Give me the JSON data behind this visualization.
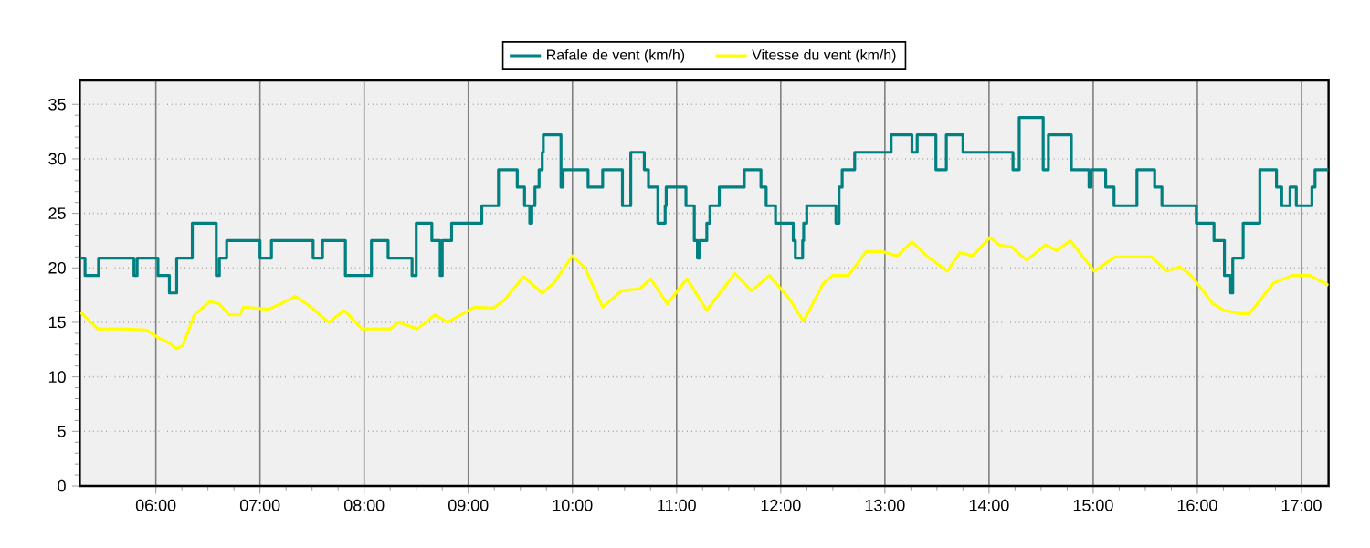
{
  "chart_data": {
    "type": "line",
    "grid": true,
    "legend": "top",
    "xlim": [
      5.27,
      17.26
    ],
    "ylim": [
      0,
      37.2
    ],
    "xticks": [
      {
        "value": 6,
        "label": "06:00"
      },
      {
        "value": 7,
        "label": "07:00"
      },
      {
        "value": 8,
        "label": "08:00"
      },
      {
        "value": 9,
        "label": "09:00"
      },
      {
        "value": 10,
        "label": "10:00"
      },
      {
        "value": 11,
        "label": "11:00"
      },
      {
        "value": 12,
        "label": "12:00"
      },
      {
        "value": 13,
        "label": "13:00"
      },
      {
        "value": 14,
        "label": "14:00"
      },
      {
        "value": 15,
        "label": "15:00"
      },
      {
        "value": 16,
        "label": "16:00"
      },
      {
        "value": 17,
        "label": "17:00"
      }
    ],
    "yticks": [
      0,
      5,
      10,
      15,
      20,
      25,
      30,
      35
    ],
    "series": [
      {
        "name": "Rafale de vent (km/h)",
        "type": "step",
        "color": "#008080",
        "x": [
          5.27,
          5.32,
          5.45,
          5.79,
          5.82,
          5.84,
          6.02,
          6.13,
          6.2,
          6.35,
          6.58,
          6.61,
          6.64,
          6.68,
          7.0,
          7.11,
          7.51,
          7.6,
          7.82,
          8.07,
          8.23,
          8.46,
          8.48,
          8.5,
          8.65,
          8.71,
          8.73,
          8.75,
          8.84,
          9.13,
          9.29,
          9.47,
          9.54,
          9.59,
          9.61,
          9.64,
          9.68,
          9.71,
          9.72,
          9.89,
          9.91,
          9.93,
          10.15,
          10.29,
          10.48,
          10.53,
          10.56,
          10.69,
          10.73,
          10.76,
          10.82,
          10.89,
          10.9,
          11.04,
          11.09,
          11.17,
          11.2,
          11.22,
          11.29,
          11.32,
          11.41,
          11.65,
          11.81,
          11.86,
          11.91,
          11.95,
          12.12,
          12.14,
          12.16,
          12.21,
          12.22,
          12.24,
          12.25,
          12.53,
          12.54,
          12.56,
          12.59,
          12.71,
          13.06,
          13.26,
          13.31,
          13.33,
          13.49,
          13.51,
          13.59,
          13.75,
          14.23,
          14.26,
          14.29,
          14.52,
          14.55,
          14.57,
          14.79,
          14.96,
          14.98,
          15.02,
          15.12,
          15.2,
          15.3,
          15.42,
          15.59,
          15.63,
          15.66,
          15.99,
          16.16,
          16.26,
          16.29,
          16.32,
          16.34,
          16.36,
          16.44,
          16.6,
          16.76,
          16.81,
          16.85,
          16.89,
          16.95,
          17.1,
          17.13,
          17.17,
          17.26
        ],
        "values": [
          20.9,
          19.3,
          20.9,
          19.3,
          20.9,
          20.9,
          19.3,
          17.7,
          20.9,
          24.1,
          19.3,
          20.9,
          20.9,
          22.5,
          20.9,
          22.5,
          20.9,
          22.5,
          19.3,
          22.5,
          20.9,
          19.3,
          19.3,
          24.1,
          22.5,
          22.5,
          19.3,
          22.5,
          24.1,
          25.7,
          29.0,
          27.4,
          25.7,
          24.1,
          25.7,
          27.4,
          29.0,
          30.6,
          32.2,
          27.4,
          29.0,
          29.0,
          27.4,
          29.0,
          25.7,
          25.7,
          30.6,
          29.0,
          27.4,
          27.4,
          24.1,
          25.7,
          27.4,
          27.4,
          25.7,
          22.5,
          20.9,
          22.5,
          24.1,
          25.7,
          27.4,
          29.0,
          27.4,
          25.7,
          25.7,
          24.1,
          22.5,
          20.9,
          20.9,
          22.5,
          24.1,
          24.1,
          25.7,
          24.1,
          24.1,
          27.4,
          29.0,
          30.6,
          32.2,
          30.6,
          32.2,
          32.2,
          29.0,
          29.0,
          32.2,
          30.6,
          29.0,
          29.0,
          33.8,
          29.0,
          29.0,
          32.2,
          29.0,
          27.4,
          29.0,
          29.0,
          27.4,
          25.7,
          25.7,
          29.0,
          27.4,
          27.4,
          25.7,
          24.1,
          22.5,
          19.3,
          19.3,
          17.7,
          20.9,
          20.9,
          24.1,
          29.0,
          27.4,
          25.7,
          25.7,
          27.4,
          25.7,
          27.4,
          29.0,
          29.0,
          29.0
        ]
      },
      {
        "name": "Vitesse du vent (km/h)",
        "type": "line",
        "color": "#ffff00",
        "x": [
          5.28,
          5.44,
          5.67,
          5.91,
          6.02,
          6.11,
          6.2,
          6.26,
          6.37,
          6.52,
          6.61,
          6.7,
          6.81,
          6.84,
          7.08,
          7.22,
          7.34,
          7.49,
          7.66,
          7.81,
          7.98,
          8.25,
          8.33,
          8.51,
          8.68,
          8.8,
          8.95,
          9.06,
          9.24,
          9.35,
          9.53,
          9.71,
          9.82,
          10.0,
          10.12,
          10.29,
          10.47,
          10.65,
          10.75,
          10.91,
          11.1,
          11.29,
          11.56,
          11.72,
          11.89,
          12.08,
          12.22,
          12.41,
          12.5,
          12.65,
          12.82,
          12.97,
          13.12,
          13.26,
          13.4,
          13.6,
          13.72,
          13.84,
          14.01,
          14.1,
          14.22,
          14.36,
          14.54,
          14.65,
          14.78,
          15.01,
          15.21,
          15.56,
          15.71,
          15.83,
          15.94,
          16.15,
          16.26,
          16.41,
          16.5,
          16.73,
          16.91,
          17.08,
          17.26
        ],
        "values": [
          15.9,
          14.4,
          14.4,
          14.3,
          13.6,
          13.2,
          12.6,
          12.9,
          15.7,
          16.9,
          16.7,
          15.7,
          15.7,
          16.4,
          16.2,
          16.8,
          17.4,
          16.4,
          15.0,
          16.1,
          14.4,
          14.4,
          15.0,
          14.4,
          15.7,
          15.0,
          15.8,
          16.4,
          16.3,
          17.1,
          19.2,
          17.7,
          18.6,
          21.1,
          20.0,
          16.4,
          17.9,
          18.1,
          19.0,
          16.7,
          19.0,
          16.1,
          19.5,
          17.9,
          19.3,
          17.2,
          15.1,
          18.6,
          19.3,
          19.3,
          21.5,
          21.5,
          21.1,
          22.4,
          21.1,
          19.7,
          21.4,
          21.1,
          22.8,
          22.1,
          21.9,
          20.7,
          22.1,
          21.6,
          22.5,
          19.7,
          21.0,
          21.0,
          19.7,
          20.1,
          19.3,
          16.7,
          16.1,
          15.8,
          15.8,
          18.6,
          19.3,
          19.3,
          18.4
        ]
      }
    ]
  }
}
